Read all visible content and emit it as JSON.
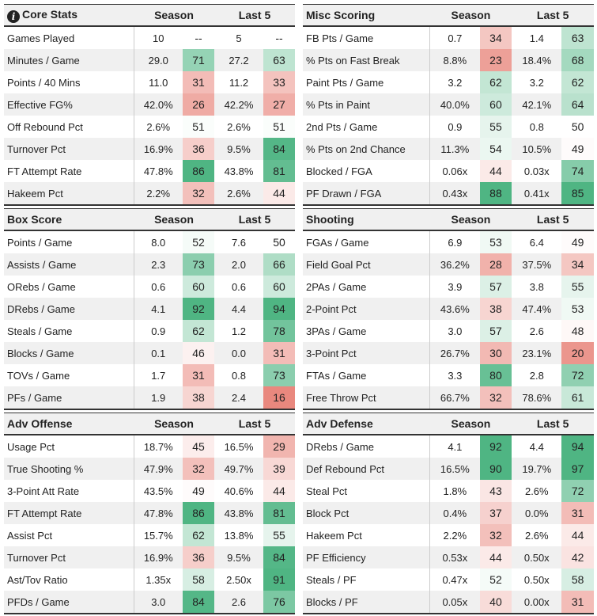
{
  "columns": {
    "season": "Season",
    "last5": "Last 5"
  },
  "panels": [
    {
      "id": "core-stats",
      "title": "Core Stats",
      "info_icon": "info-icon",
      "rows": [
        {
          "label": "Games Played",
          "season": "10",
          "season_pct": "--",
          "last5": "5",
          "last5_pct": "--"
        },
        {
          "label": "Minutes / Game",
          "season": "29.0",
          "season_pct": "71",
          "last5": "27.2",
          "last5_pct": "63"
        },
        {
          "label": "Points / 40 Mins",
          "season": "11.0",
          "season_pct": "31",
          "last5": "11.2",
          "last5_pct": "33"
        },
        {
          "label": "Effective FG%",
          "season": "42.0%",
          "season_pct": "26",
          "last5": "42.2%",
          "last5_pct": "27"
        },
        {
          "label": "Off Rebound Pct",
          "season": "2.6%",
          "season_pct": "51",
          "last5": "2.6%",
          "last5_pct": "51"
        },
        {
          "label": "Turnover Pct",
          "season": "16.9%",
          "season_pct": "36",
          "last5": "9.5%",
          "last5_pct": "84"
        },
        {
          "label": "FT Attempt Rate",
          "season": "47.8%",
          "season_pct": "86",
          "last5": "43.8%",
          "last5_pct": "81"
        },
        {
          "label": "Hakeem Pct",
          "season": "2.2%",
          "season_pct": "32",
          "last5": "2.6%",
          "last5_pct": "44"
        }
      ]
    },
    {
      "id": "misc-scoring",
      "title": "Misc Scoring",
      "rows": [
        {
          "label": "FB Pts / Game",
          "season": "0.7",
          "season_pct": "34",
          "last5": "1.4",
          "last5_pct": "63"
        },
        {
          "label": "% Pts on Fast Break",
          "season": "8.8%",
          "season_pct": "23",
          "last5": "18.4%",
          "last5_pct": "68"
        },
        {
          "label": "Paint Pts / Game",
          "season": "3.2",
          "season_pct": "62",
          "last5": "3.2",
          "last5_pct": "62"
        },
        {
          "label": "% Pts in Paint",
          "season": "40.0%",
          "season_pct": "60",
          "last5": "42.1%",
          "last5_pct": "64"
        },
        {
          "label": "2nd Pts / Game",
          "season": "0.9",
          "season_pct": "55",
          "last5": "0.8",
          "last5_pct": "50"
        },
        {
          "label": "% Pts on 2nd Chance",
          "season": "11.3%",
          "season_pct": "54",
          "last5": "10.5%",
          "last5_pct": "49"
        },
        {
          "label": "Blocked / FGA",
          "season": "0.06x",
          "season_pct": "44",
          "last5": "0.03x",
          "last5_pct": "74"
        },
        {
          "label": "PF Drawn / FGA",
          "season": "0.43x",
          "season_pct": "88",
          "last5": "0.41x",
          "last5_pct": "85"
        }
      ]
    },
    {
      "id": "box-score",
      "title": "Box Score",
      "rows": [
        {
          "label": "Points / Game",
          "season": "8.0",
          "season_pct": "52",
          "last5": "7.6",
          "last5_pct": "50"
        },
        {
          "label": "Assists / Game",
          "season": "2.3",
          "season_pct": "73",
          "last5": "2.0",
          "last5_pct": "66"
        },
        {
          "label": "ORebs / Game",
          "season": "0.6",
          "season_pct": "60",
          "last5": "0.6",
          "last5_pct": "60"
        },
        {
          "label": "DRebs / Game",
          "season": "4.1",
          "season_pct": "92",
          "last5": "4.4",
          "last5_pct": "94"
        },
        {
          "label": "Steals / Game",
          "season": "0.9",
          "season_pct": "62",
          "last5": "1.2",
          "last5_pct": "78"
        },
        {
          "label": "Blocks / Game",
          "season": "0.1",
          "season_pct": "46",
          "last5": "0.0",
          "last5_pct": "31"
        },
        {
          "label": "TOVs / Game",
          "season": "1.7",
          "season_pct": "31",
          "last5": "0.8",
          "last5_pct": "73"
        },
        {
          "label": "PFs / Game",
          "season": "1.9",
          "season_pct": "38",
          "last5": "2.4",
          "last5_pct": "16"
        }
      ]
    },
    {
      "id": "shooting",
      "title": "Shooting",
      "rows": [
        {
          "label": "FGAs / Game",
          "season": "6.9",
          "season_pct": "53",
          "last5": "6.4",
          "last5_pct": "49"
        },
        {
          "label": "Field Goal Pct",
          "season": "36.2%",
          "season_pct": "28",
          "last5": "37.5%",
          "last5_pct": "34"
        },
        {
          "label": "2PAs / Game",
          "season": "3.9",
          "season_pct": "57",
          "last5": "3.8",
          "last5_pct": "55"
        },
        {
          "label": "2-Point Pct",
          "season": "43.6%",
          "season_pct": "38",
          "last5": "47.4%",
          "last5_pct": "53"
        },
        {
          "label": "3PAs / Game",
          "season": "3.0",
          "season_pct": "57",
          "last5": "2.6",
          "last5_pct": "48"
        },
        {
          "label": "3-Point Pct",
          "season": "26.7%",
          "season_pct": "30",
          "last5": "23.1%",
          "last5_pct": "20"
        },
        {
          "label": "FTAs / Game",
          "season": "3.3",
          "season_pct": "80",
          "last5": "2.8",
          "last5_pct": "72"
        },
        {
          "label": "Free Throw Pct",
          "season": "66.7%",
          "season_pct": "32",
          "last5": "78.6%",
          "last5_pct": "61"
        }
      ]
    },
    {
      "id": "adv-offense",
      "title": "Adv Offense",
      "rows": [
        {
          "label": "Usage Pct",
          "season": "18.7%",
          "season_pct": "45",
          "last5": "16.5%",
          "last5_pct": "29"
        },
        {
          "label": "True Shooting %",
          "season": "47.9%",
          "season_pct": "32",
          "last5": "49.7%",
          "last5_pct": "39"
        },
        {
          "label": "3-Point Att Rate",
          "season": "43.5%",
          "season_pct": "49",
          "last5": "40.6%",
          "last5_pct": "44"
        },
        {
          "label": "FT Attempt Rate",
          "season": "47.8%",
          "season_pct": "86",
          "last5": "43.8%",
          "last5_pct": "81"
        },
        {
          "label": "Assist Pct",
          "season": "15.7%",
          "season_pct": "62",
          "last5": "13.8%",
          "last5_pct": "55"
        },
        {
          "label": "Turnover Pct",
          "season": "16.9%",
          "season_pct": "36",
          "last5": "9.5%",
          "last5_pct": "84"
        },
        {
          "label": "Ast/Tov Ratio",
          "season": "1.35x",
          "season_pct": "58",
          "last5": "2.50x",
          "last5_pct": "91"
        },
        {
          "label": "PFDs / Game",
          "season": "3.0",
          "season_pct": "84",
          "last5": "2.6",
          "last5_pct": "76"
        }
      ]
    },
    {
      "id": "adv-defense",
      "title": "Adv Defense",
      "rows": [
        {
          "label": "DRebs / Game",
          "season": "4.1",
          "season_pct": "92",
          "last5": "4.4",
          "last5_pct": "94"
        },
        {
          "label": "Def Rebound Pct",
          "season": "16.5%",
          "season_pct": "90",
          "last5": "19.7%",
          "last5_pct": "97"
        },
        {
          "label": "Steal Pct",
          "season": "1.8%",
          "season_pct": "43",
          "last5": "2.6%",
          "last5_pct": "72"
        },
        {
          "label": "Block Pct",
          "season": "0.4%",
          "season_pct": "37",
          "last5": "0.0%",
          "last5_pct": "31"
        },
        {
          "label": "Hakeem Pct",
          "season": "2.2%",
          "season_pct": "32",
          "last5": "2.6%",
          "last5_pct": "44"
        },
        {
          "label": "PF Efficiency",
          "season": "0.53x",
          "season_pct": "44",
          "last5": "0.50x",
          "last5_pct": "42"
        },
        {
          "label": "Steals / PF",
          "season": "0.47x",
          "season_pct": "52",
          "last5": "0.50x",
          "last5_pct": "58"
        },
        {
          "label": "Blocks / PF",
          "season": "0.05x",
          "season_pct": "40",
          "last5": "0.00x",
          "last5_pct": "31"
        }
      ]
    }
  ],
  "colors": {
    "good": "#4fb583",
    "bad": "#e8847a",
    "neutral": "#ffffff",
    "header_bg": "#f0f0f0",
    "stripe_bg": "#f0f0f0"
  }
}
